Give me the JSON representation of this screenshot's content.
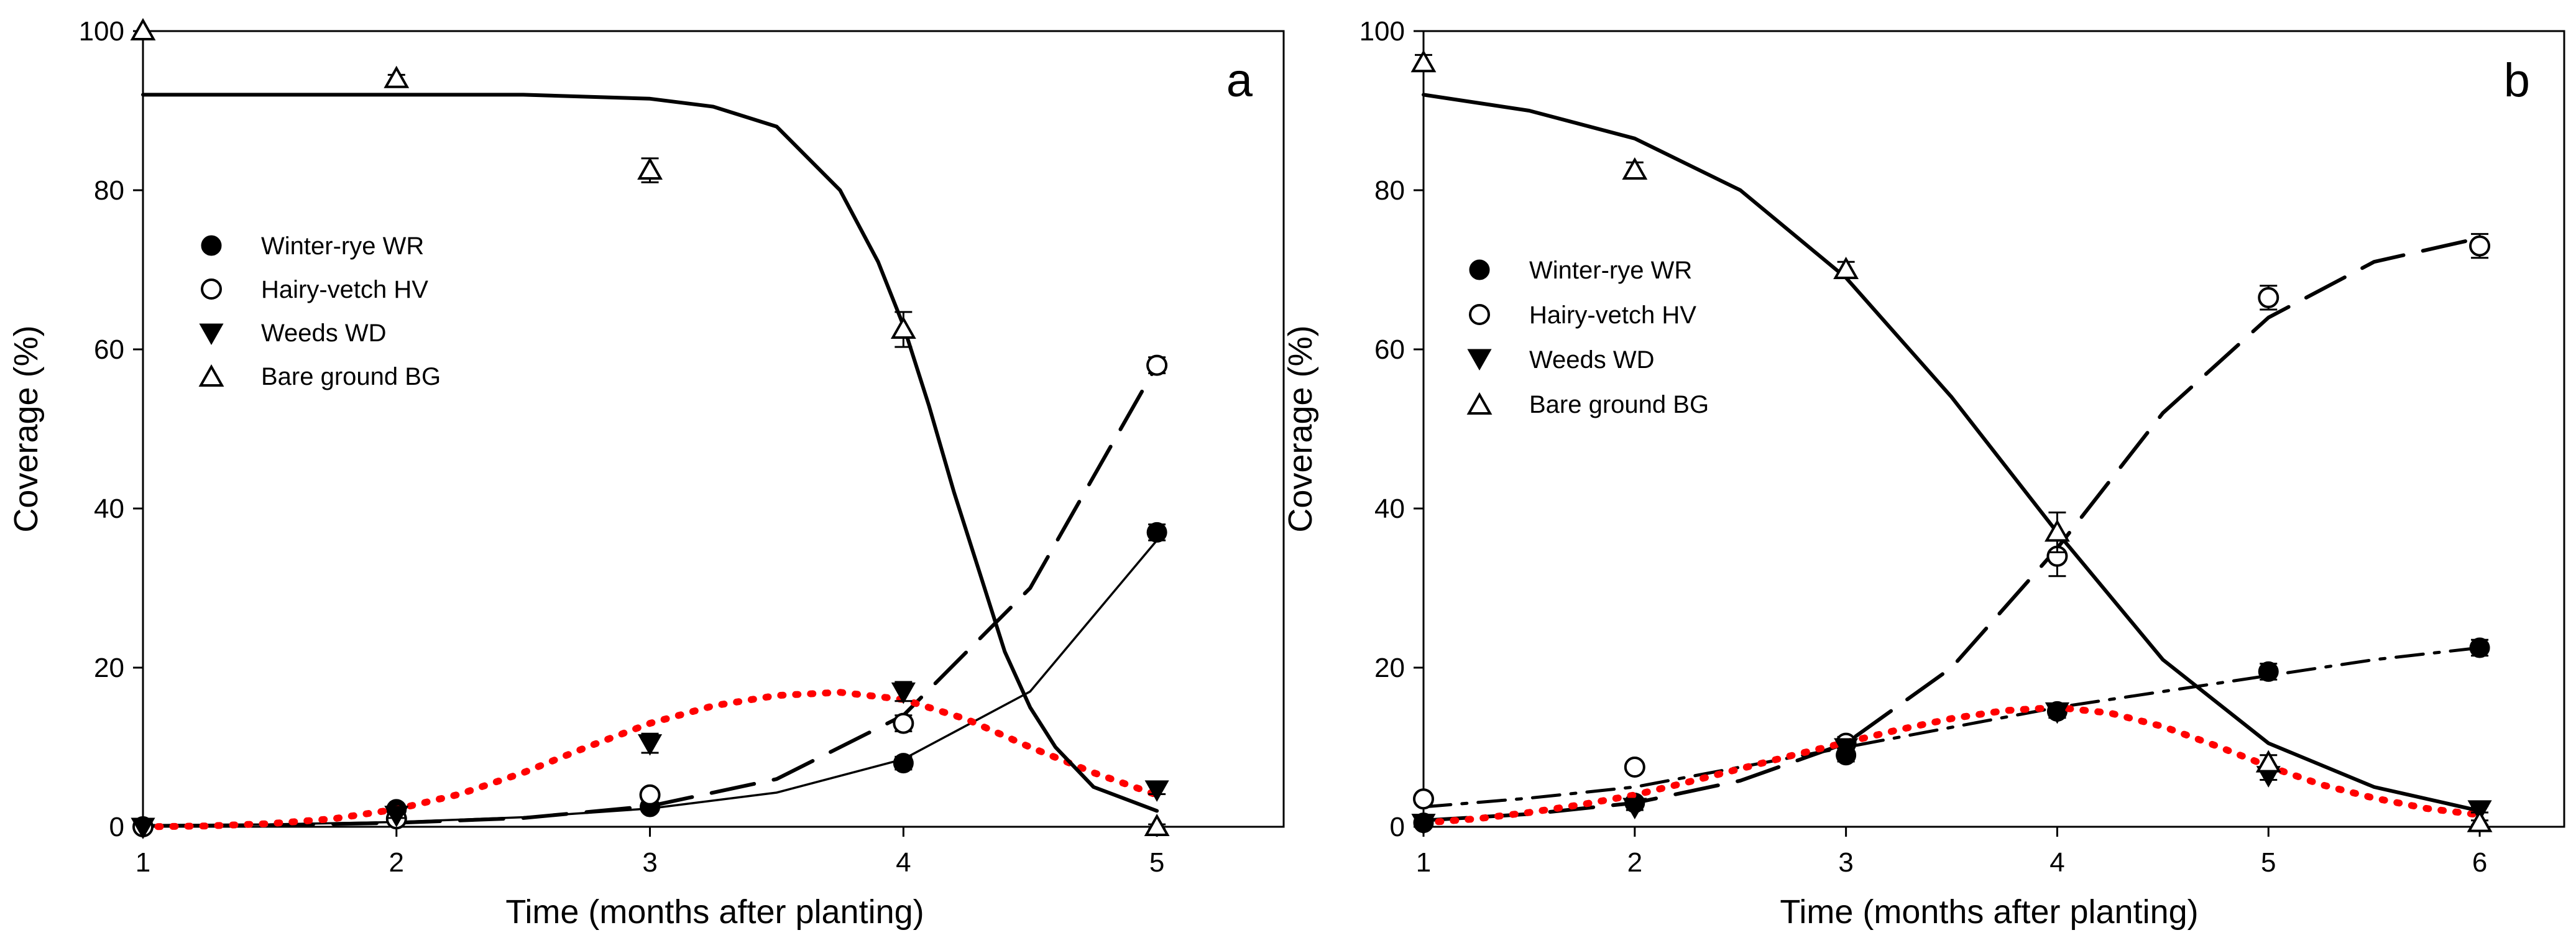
{
  "chart_data": [
    {
      "type": "scatter",
      "panel_label": "a",
      "xlabel": "Time (months after planting)",
      "ylabel": "Coverage (%)",
      "xlim": [
        1,
        5.5
      ],
      "ylim": [
        0,
        100
      ],
      "xticks": [
        1,
        2,
        3,
        4,
        5
      ],
      "yticks": [
        0,
        20,
        40,
        60,
        80,
        100
      ],
      "legend_position": "upper-left",
      "series": [
        {
          "name": "Winter-rye WR",
          "marker": "circle-filled",
          "x": [
            1,
            2,
            3,
            4,
            5
          ],
          "y": [
            0,
            2.2,
            2.5,
            8,
            37
          ],
          "err": [
            0,
            0.5,
            0.5,
            0.8,
            1
          ],
          "fit": {
            "style": "thin-solid",
            "color": "#000000",
            "x": [
              1,
              1.5,
              2,
              2.5,
              3,
              3.5,
              4,
              4.5,
              5
            ],
            "y": [
              0.2,
              0.3,
              0.6,
              1.2,
              2.3,
              4.3,
              8.5,
              17,
              36
            ]
          }
        },
        {
          "name": "Hairy-vetch HV",
          "marker": "circle-open",
          "x": [
            1,
            2,
            3,
            4,
            5
          ],
          "y": [
            0,
            1,
            4,
            13,
            58
          ],
          "err": [
            0,
            0.3,
            0.6,
            1,
            1
          ],
          "fit": {
            "style": "long-dash",
            "color": "#000000",
            "x": [
              1,
              1.5,
              2,
              2.5,
              3,
              3.5,
              4,
              4.5,
              5
            ],
            "y": [
              0.1,
              0.2,
              0.5,
              1.1,
              2.6,
              6,
              14,
              30,
              58
            ]
          }
        },
        {
          "name": "Weeds WD",
          "marker": "triangle-down-filled",
          "x": [
            1,
            2,
            3,
            4,
            5
          ],
          "y": [
            0,
            1.5,
            10.5,
            17,
            4.7
          ],
          "err": [
            0,
            0.4,
            1.2,
            1.2,
            0.6
          ],
          "fit": {
            "style": "dotted",
            "color": "#ff0000",
            "x": [
              1,
              1.25,
              1.5,
              1.75,
              2,
              2.25,
              2.5,
              2.75,
              3,
              3.25,
              3.5,
              3.75,
              4,
              4.25,
              4.5,
              4.75,
              5
            ],
            "y": [
              0,
              0.1,
              0.4,
              1,
              2.2,
              4.1,
              6.8,
              10,
              13,
              15.2,
              16.5,
              16.9,
              16,
              13.5,
              10,
              6.8,
              4
            ]
          }
        },
        {
          "name": "Bare ground BG",
          "marker": "triangle-up-open",
          "x": [
            1,
            2,
            3,
            4,
            5
          ],
          "y": [
            100,
            94,
            82.5,
            62.5,
            0
          ],
          "err": [
            0,
            0.5,
            1.5,
            2.2,
            0.3
          ],
          "fit": {
            "style": "solid",
            "color": "#000000",
            "x": [
              1,
              1.5,
              2,
              2.5,
              3,
              3.25,
              3.5,
              3.75,
              3.9,
              4,
              4.1,
              4.2,
              4.3,
              4.4,
              4.5,
              4.6,
              4.75,
              5
            ],
            "y": [
              92,
              92,
              92,
              92,
              91.5,
              90.5,
              88,
              80,
              71,
              63,
              53,
              42,
              32,
              22,
              15,
              10,
              5,
              2
            ]
          }
        }
      ]
    },
    {
      "type": "scatter",
      "panel_label": "b",
      "xlabel": "Time (months after planting)",
      "ylabel": "Coverage (%)",
      "xlim": [
        1,
        6.4
      ],
      "ylim": [
        0,
        100
      ],
      "xticks": [
        1,
        2,
        3,
        4,
        5,
        6
      ],
      "yticks": [
        0,
        20,
        40,
        60,
        80,
        100
      ],
      "legend_position": "center-left",
      "series": [
        {
          "name": "Winter-rye WR",
          "marker": "circle-filled",
          "x": [
            1,
            2,
            3,
            4,
            5,
            6
          ],
          "y": [
            0.5,
            3,
            9,
            14.5,
            19.5,
            22.5
          ],
          "err": [
            0.3,
            0.5,
            0.8,
            0.8,
            1,
            1
          ],
          "fit": {
            "style": "dash-dot",
            "color": "#000000",
            "x": [
              1,
              1.5,
              2,
              2.5,
              3,
              3.5,
              4,
              4.5,
              5,
              5.5,
              6
            ],
            "y": [
              2.5,
              3.6,
              5,
              7.5,
              10,
              12.5,
              15,
              17,
              19,
              21,
              22.5
            ]
          }
        },
        {
          "name": "Hairy-vetch HV",
          "marker": "circle-open",
          "x": [
            1,
            2,
            3,
            4,
            5,
            6
          ],
          "y": [
            3.5,
            7.5,
            10.5,
            34,
            66.5,
            73
          ],
          "err": [
            0.4,
            0.6,
            0.8,
            2.5,
            1.5,
            1.5
          ],
          "fit": {
            "style": "long-dash",
            "color": "#000000",
            "x": [
              1,
              1.5,
              2,
              2.5,
              3,
              3.5,
              4,
              4.5,
              5,
              5.5,
              6
            ],
            "y": [
              0.8,
              1.6,
              3,
              5.8,
              10.5,
              20,
              35,
              52,
              64,
              71,
              74
            ]
          }
        },
        {
          "name": "Weeds WD",
          "marker": "triangle-down-filled",
          "x": [
            1,
            2,
            3,
            4,
            5,
            6
          ],
          "y": [
            0.5,
            2.5,
            10,
            14.5,
            6.5,
            2.2
          ],
          "err": [
            0.2,
            0.4,
            0.8,
            0.8,
            0.6,
            0.4
          ],
          "fit": {
            "style": "dotted",
            "color": "#ff0000",
            "x": [
              1,
              1.25,
              1.5,
              1.75,
              2,
              2.25,
              2.5,
              2.75,
              3,
              3.25,
              3.5,
              3.75,
              4,
              4.25,
              4.5,
              4.75,
              5,
              5.25,
              5.5,
              5.75,
              6
            ],
            "y": [
              0.5,
              1,
              1.8,
              2.8,
              4,
              5.6,
              7.3,
              9,
              10.6,
              12.2,
              13.6,
              14.6,
              15,
              14.3,
              12.6,
              10.2,
              7.6,
              5.3,
              3.6,
              2.3,
              1.5
            ]
          }
        },
        {
          "name": "Bare ground BG",
          "marker": "triangle-up-open",
          "x": [
            1,
            2,
            3,
            4,
            5,
            6
          ],
          "y": [
            96,
            82.5,
            70,
            37,
            8,
            0.5
          ],
          "err": [
            1,
            1,
            1,
            2.5,
            1,
            0.3
          ],
          "fit": {
            "style": "solid",
            "color": "#000000",
            "x": [
              1,
              1.5,
              2,
              2.5,
              3,
              3.5,
              4,
              4.5,
              5,
              5.5,
              6
            ],
            "y": [
              92,
              90,
              86.5,
              80,
              69,
              54,
              37,
              21,
              10.5,
              5,
              2
            ]
          }
        }
      ]
    }
  ]
}
